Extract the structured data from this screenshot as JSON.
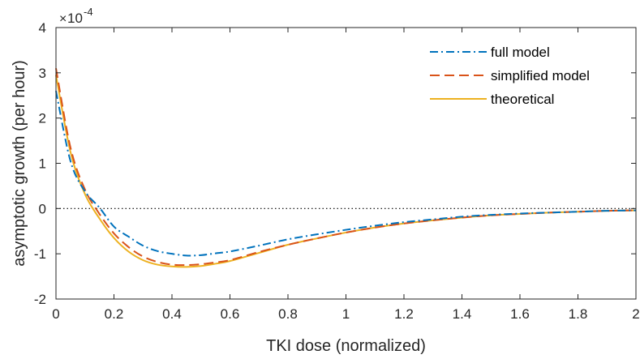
{
  "chart_data": {
    "type": "line",
    "xlabel": "TKI dose (normalized)",
    "ylabel": "asymptotic growth (per hour)",
    "xlim": [
      0,
      2
    ],
    "ylim": [
      -2,
      4
    ],
    "xticks": [
      0,
      0.2,
      0.4,
      0.6,
      0.8,
      1,
      1.2,
      1.4,
      1.6,
      1.8,
      2
    ],
    "yticks": [
      -2,
      -1,
      0,
      1,
      2,
      3,
      4
    ],
    "xtick_labels": [
      "0",
      "0.2",
      "0.4",
      "0.6",
      "0.8",
      "1",
      "1.2",
      "1.4",
      "1.6",
      "1.8",
      "2"
    ],
    "ytick_labels": [
      "-2",
      "-1",
      "0",
      "1",
      "2",
      "3",
      "4"
    ],
    "y_multiplier": {
      "base": "10",
      "exponent": "-4"
    },
    "grid": false,
    "legend_position": "top-right",
    "reference_line": {
      "y": 0,
      "style": "dotted",
      "color": "#000000"
    },
    "series": [
      {
        "name": "full model",
        "style": "dash-dot",
        "color": "#0072BD",
        "x": [
          0,
          0.05,
          0.1,
          0.15,
          0.2,
          0.25,
          0.3,
          0.35,
          0.4,
          0.45,
          0.5,
          0.55,
          0.6,
          0.7,
          0.8,
          0.9,
          1.0,
          1.1,
          1.2,
          1.3,
          1.4,
          1.5,
          1.6,
          1.7,
          1.8,
          1.9,
          2.0
        ],
        "y": [
          2.6,
          1.05,
          0.38,
          0.02,
          -0.4,
          -0.62,
          -0.82,
          -0.94,
          -1.0,
          -1.04,
          -1.03,
          -0.99,
          -0.95,
          -0.82,
          -0.68,
          -0.57,
          -0.47,
          -0.38,
          -0.3,
          -0.24,
          -0.18,
          -0.14,
          -0.11,
          -0.09,
          -0.07,
          -0.05,
          -0.04
        ]
      },
      {
        "name": "simplified model",
        "style": "dashed",
        "color": "#D95319",
        "x": [
          0,
          0.05,
          0.1,
          0.15,
          0.2,
          0.25,
          0.3,
          0.35,
          0.4,
          0.45,
          0.5,
          0.55,
          0.6,
          0.7,
          0.8,
          0.9,
          1.0,
          1.1,
          1.2,
          1.3,
          1.4,
          1.5,
          1.6,
          1.7,
          1.8,
          1.9,
          2.0
        ],
        "y": [
          3.1,
          1.35,
          0.42,
          -0.12,
          -0.55,
          -0.85,
          -1.06,
          -1.18,
          -1.24,
          -1.25,
          -1.23,
          -1.19,
          -1.14,
          -0.96,
          -0.8,
          -0.66,
          -0.53,
          -0.42,
          -0.33,
          -0.26,
          -0.2,
          -0.15,
          -0.12,
          -0.09,
          -0.07,
          -0.05,
          -0.04
        ]
      },
      {
        "name": "theoretical",
        "style": "solid",
        "color": "#EDB120",
        "x": [
          0,
          0.05,
          0.1,
          0.15,
          0.2,
          0.25,
          0.3,
          0.35,
          0.4,
          0.45,
          0.5,
          0.55,
          0.6,
          0.7,
          0.8,
          0.9,
          1.0,
          1.1,
          1.2,
          1.3,
          1.4,
          1.5,
          1.6,
          1.7,
          1.8,
          1.9,
          2.0
        ],
        "y": [
          2.95,
          1.25,
          0.32,
          -0.22,
          -0.65,
          -0.95,
          -1.14,
          -1.24,
          -1.28,
          -1.29,
          -1.27,
          -1.22,
          -1.16,
          -0.98,
          -0.8,
          -0.66,
          -0.53,
          -0.42,
          -0.33,
          -0.26,
          -0.2,
          -0.15,
          -0.12,
          -0.09,
          -0.07,
          -0.05,
          -0.04
        ]
      }
    ]
  }
}
